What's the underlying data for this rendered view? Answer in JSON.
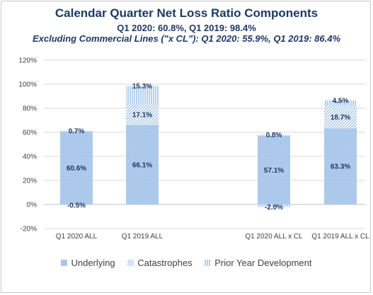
{
  "title": "Calendar Quarter Net Loss Ratio Components",
  "subtitle1": "Q1 2020: 60.8%, Q1 2019: 98.4%",
  "subtitle2": "Excluding Commercial Lines (\"x CL\"): Q1 2020: 55.9%, Q1 2019: 86.4%",
  "colors": {
    "underlying": "#a9c7ea",
    "catastrophes": "#8eb4e3",
    "pyd": "#6a9fd8",
    "grid": "#d9d9d9",
    "axis": "#bfbfbf",
    "title": "#1f3864"
  },
  "chart_data": {
    "type": "bar",
    "stacked": true,
    "categories": [
      "Q1 2020 ALL",
      "Q1 2019 ALL",
      "Q1 2020 ALL x CL",
      "Q1 2019 ALL x CL"
    ],
    "series": [
      {
        "name": "Underlying",
        "values": [
          60.6,
          66.1,
          57.1,
          63.3
        ],
        "labels": [
          "60.6%",
          "66.1%",
          "57.1%",
          "63.3%"
        ]
      },
      {
        "name": "Catastrophes",
        "values": [
          0.7,
          17.1,
          0.8,
          18.7
        ],
        "labels": [
          "0.7%",
          "17.1%",
          "0.8%",
          "18.7%"
        ]
      },
      {
        "name": "Prior Year Development",
        "values": [
          -0.5,
          15.3,
          -2.0,
          4.5
        ],
        "labels": [
          "-0.5%",
          "15.3%",
          "-2.0%",
          "4.5%"
        ]
      }
    ],
    "ylim": [
      -20,
      120
    ],
    "yticks": [
      -20,
      0,
      20,
      40,
      60,
      80,
      100,
      120
    ],
    "ytick_labels": [
      "-20%",
      "0%",
      "20%",
      "40%",
      "60%",
      "80%",
      "100%",
      "120%"
    ],
    "grid": true,
    "legend_position": "bottom"
  }
}
